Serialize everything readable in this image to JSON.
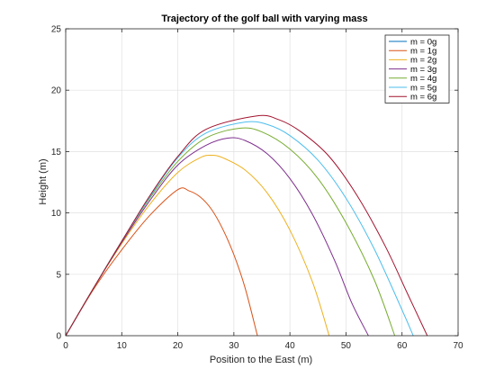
{
  "chart_data": {
    "type": "line",
    "title": "Trajectory of the golf ball with varying mass",
    "xlabel": "Position to the East (m)",
    "ylabel": "Height (m)",
    "xlim": [
      0,
      70
    ],
    "ylim": [
      0,
      25
    ],
    "xticks": [
      0,
      10,
      20,
      30,
      40,
      50,
      60,
      70
    ],
    "yticks": [
      0,
      5,
      10,
      15,
      20,
      25
    ],
    "grid": true,
    "legend_position": "top-right",
    "series": [
      {
        "name": "m = 0g",
        "color": "#0072BD",
        "points": []
      },
      {
        "name": "m = 1g",
        "color": "#D95319",
        "points": [
          [
            0,
            0
          ],
          [
            5,
            3.8
          ],
          [
            10,
            7.0
          ],
          [
            15,
            9.8
          ],
          [
            20,
            11.9
          ],
          [
            22,
            11.8
          ],
          [
            24,
            11.3
          ],
          [
            26,
            10.3
          ],
          [
            28,
            8.7
          ],
          [
            30,
            6.6
          ],
          [
            32,
            3.9
          ],
          [
            34.2,
            0
          ]
        ]
      },
      {
        "name": "m = 2g",
        "color": "#EDB120",
        "points": [
          [
            0,
            0
          ],
          [
            5,
            3.9
          ],
          [
            10,
            7.5
          ],
          [
            15,
            10.7
          ],
          [
            20,
            13.3
          ],
          [
            24,
            14.5
          ],
          [
            26,
            14.7
          ],
          [
            28,
            14.5
          ],
          [
            32,
            13.5
          ],
          [
            36,
            11.6
          ],
          [
            40,
            8.6
          ],
          [
            44,
            4.4
          ],
          [
            47,
            0
          ]
        ]
      },
      {
        "name": "m = 3g",
        "color": "#7E2F8E",
        "points": [
          [
            0,
            0
          ],
          [
            5,
            3.9
          ],
          [
            10,
            7.6
          ],
          [
            15,
            11.0
          ],
          [
            20,
            13.9
          ],
          [
            25,
            15.5
          ],
          [
            29,
            16.1
          ],
          [
            32,
            15.9
          ],
          [
            36,
            14.8
          ],
          [
            40,
            12.8
          ],
          [
            44,
            9.9
          ],
          [
            48,
            6.1
          ],
          [
            51,
            2.7
          ],
          [
            54,
            0
          ]
        ]
      },
      {
        "name": "m = 4g",
        "color": "#77AC30",
        "points": [
          [
            0,
            0
          ],
          [
            5,
            3.9
          ],
          [
            10,
            7.7
          ],
          [
            15,
            11.2
          ],
          [
            20,
            14.2
          ],
          [
            25,
            16.1
          ],
          [
            31,
            16.9
          ],
          [
            35,
            16.6
          ],
          [
            40,
            15.2
          ],
          [
            45,
            12.8
          ],
          [
            50,
            9.2
          ],
          [
            55,
            4.6
          ],
          [
            58.7,
            0
          ]
        ]
      },
      {
        "name": "m = 5g",
        "color": "#4DBEEE",
        "points": [
          [
            0,
            0
          ],
          [
            5,
            3.9
          ],
          [
            10,
            7.7
          ],
          [
            15,
            11.3
          ],
          [
            20,
            14.5
          ],
          [
            25,
            16.5
          ],
          [
            32,
            17.4
          ],
          [
            36,
            17.2
          ],
          [
            40,
            16.3
          ],
          [
            45,
            14.3
          ],
          [
            50,
            11.2
          ],
          [
            55,
            7.1
          ],
          [
            60,
            2.1
          ],
          [
            62,
            0
          ]
        ]
      },
      {
        "name": "m = 6g",
        "color": "#A2142F",
        "points": [
          [
            0,
            0
          ],
          [
            5,
            3.9
          ],
          [
            10,
            7.7
          ],
          [
            15,
            11.4
          ],
          [
            20,
            14.6
          ],
          [
            25,
            16.8
          ],
          [
            34,
            17.9
          ],
          [
            38,
            17.6
          ],
          [
            42,
            16.6
          ],
          [
            47,
            14.6
          ],
          [
            52,
            11.4
          ],
          [
            57,
            7.3
          ],
          [
            61,
            3.4
          ],
          [
            64.5,
            0
          ]
        ]
      }
    ]
  }
}
